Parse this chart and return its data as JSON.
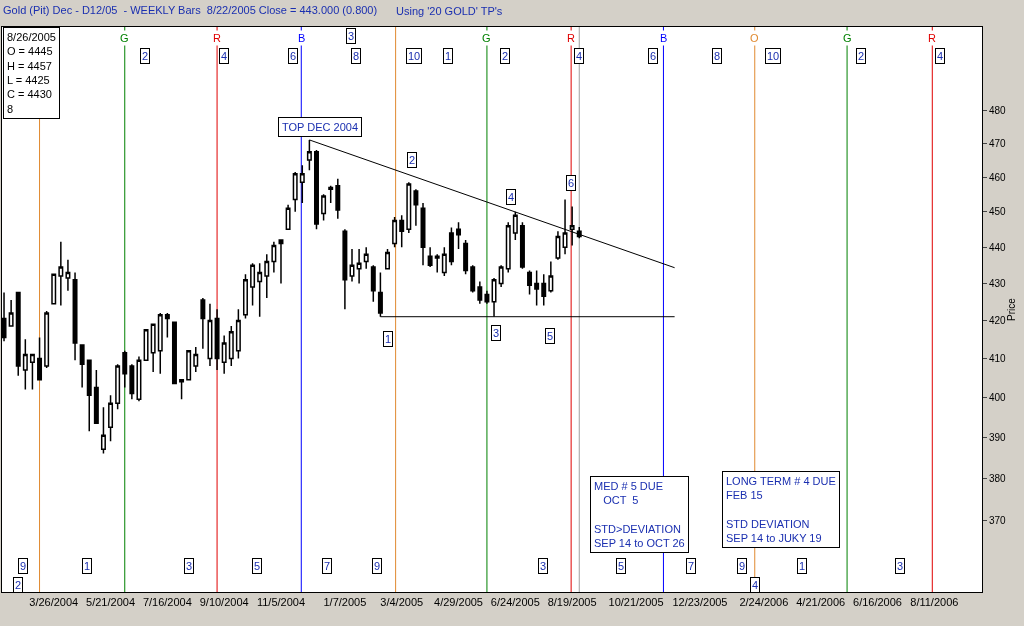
{
  "chart_data": {
    "type": "candlestick",
    "title": "Gold (Pit) Dec - D12/05  - WEEKLY Bars  8/22/2005 Close = 443.000 (0.800)",
    "subtitle": "Using '20 GOLD' TP's",
    "ylabel": "Price",
    "color": "#000000",
    "x": [
      "2004-02-06",
      "2004-02-13",
      "2004-02-20",
      "2004-02-27",
      "2004-03-05",
      "2004-03-12",
      "2004-03-19",
      "2004-03-26",
      "2004-04-02",
      "2004-04-09",
      "2004-04-16",
      "2004-04-23",
      "2004-04-30",
      "2004-05-07",
      "2004-05-14",
      "2004-05-21",
      "2004-05-28",
      "2004-06-04",
      "2004-06-11",
      "2004-06-18",
      "2004-06-25",
      "2004-07-02",
      "2004-07-09",
      "2004-07-16",
      "2004-07-23",
      "2004-07-30",
      "2004-08-06",
      "2004-08-13",
      "2004-08-20",
      "2004-08-27",
      "2004-09-03",
      "2004-09-10",
      "2004-09-17",
      "2004-09-24",
      "2004-10-01",
      "2004-10-08",
      "2004-10-15",
      "2004-10-22",
      "2004-10-29",
      "2004-11-05",
      "2004-11-12",
      "2004-11-19",
      "2004-11-26",
      "2004-12-03",
      "2004-12-10",
      "2004-12-17",
      "2004-12-24",
      "2004-12-31",
      "2005-01-07",
      "2005-01-14",
      "2005-01-21",
      "2005-01-28",
      "2005-02-04",
      "2005-02-11",
      "2005-02-18",
      "2005-02-25",
      "2005-03-04",
      "2005-03-11",
      "2005-03-18",
      "2005-03-25",
      "2005-04-01",
      "2005-04-08",
      "2005-04-15",
      "2005-04-22",
      "2005-04-29",
      "2005-05-06",
      "2005-05-13",
      "2005-05-20",
      "2005-05-27",
      "2005-06-03",
      "2005-06-10",
      "2005-06-17",
      "2005-06-24",
      "2005-07-01",
      "2005-07-08",
      "2005-07-15",
      "2005-07-22",
      "2005-07-29",
      "2005-08-05",
      "2005-08-12",
      "2005-08-19",
      "2005-08-26"
    ],
    "ohlc": [
      [
        420.5,
        427.5,
        414.5,
        415.5
      ],
      [
        418.5,
        425.5,
        418.5,
        422
      ],
      [
        427.5,
        427.5,
        405.5,
        408
      ],
      [
        407,
        415,
        402,
        411
      ],
      [
        409,
        411,
        402,
        411
      ],
      [
        410,
        415.5,
        404.5,
        404.5
      ],
      [
        408,
        422.5,
        407.5,
        422
      ],
      [
        424.5,
        432.5,
        424.5,
        432.5
      ],
      [
        432,
        441.5,
        424,
        434.5
      ],
      [
        431.5,
        436.5,
        428,
        433
      ],
      [
        431,
        433,
        409.5,
        414
      ],
      [
        413.5,
        413.5,
        402.5,
        408.5
      ],
      [
        409.5,
        409.5,
        391.5,
        400.5
      ],
      [
        402.5,
        407,
        393.5,
        393.5
      ],
      [
        387,
        397.5,
        386,
        390.5
      ],
      [
        392.5,
        400.5,
        389,
        398.5
      ],
      [
        398.5,
        408.5,
        397,
        408
      ],
      [
        411.5,
        412,
        402.5,
        406
      ],
      [
        408,
        408.5,
        399.5,
        401
      ],
      [
        399.5,
        410.5,
        399,
        409.5
      ],
      [
        409.5,
        417.5,
        409.5,
        417.5
      ],
      [
        411.5,
        419,
        406.5,
        419
      ],
      [
        412,
        422,
        406,
        421.5
      ],
      [
        421.5,
        422,
        415.5,
        420.5
      ],
      [
        419.5,
        419.5,
        403.5,
        403.5
      ],
      [
        404,
        404.5,
        399.5,
        404.5
      ],
      [
        404.5,
        412,
        404.5,
        412
      ],
      [
        408,
        413,
        406.5,
        411
      ],
      [
        425.5,
        426,
        412.5,
        420.5
      ],
      [
        410,
        424.5,
        408,
        420
      ],
      [
        420.5,
        423,
        407,
        410
      ],
      [
        409,
        416,
        406,
        414
      ],
      [
        410,
        418.5,
        408,
        417
      ],
      [
        412,
        423,
        410,
        420
      ],
      [
        421.5,
        432.5,
        420.5,
        431
      ],
      [
        429,
        435.5,
        424,
        435
      ],
      [
        430.5,
        435.5,
        421,
        433
      ],
      [
        432,
        438,
        426,
        436
      ],
      [
        436,
        441.5,
        433,
        440.5
      ],
      [
        442,
        442,
        430,
        441
      ],
      [
        445,
        452,
        445,
        451
      ],
      [
        453.5,
        461.5,
        450,
        461
      ],
      [
        458.5,
        463.5,
        452.5,
        461
      ],
      [
        465,
        471,
        462,
        467.5
      ],
      [
        467.5,
        468,
        445,
        446.5
      ],
      [
        449.5,
        455,
        447.5,
        454.5
      ],
      [
        456.5,
        457.5,
        452.5,
        457
      ],
      [
        457.5,
        459.5,
        448,
        450.5
      ],
      [
        444.5,
        445,
        423,
        431
      ],
      [
        432,
        439.5,
        430.5,
        435
      ],
      [
        434,
        439.5,
        430,
        435.5
      ],
      [
        436,
        440,
        434,
        438
      ],
      [
        434.5,
        435,
        425,
        428
      ],
      [
        427.5,
        433,
        421,
        422
      ],
      [
        434,
        439.5,
        434,
        438.5
      ],
      [
        441,
        448.5,
        440,
        447.5
      ],
      [
        447.5,
        449,
        440,
        444.5
      ],
      [
        445,
        458.5,
        444,
        458
      ],
      [
        456,
        456.5,
        446,
        452
      ],
      [
        451,
        452.5,
        435,
        440
      ],
      [
        437.5,
        440,
        434.5,
        435
      ],
      [
        437,
        438,
        433,
        437.5
      ],
      [
        433,
        440,
        432,
        438
      ],
      [
        444,
        445.5,
        435,
        436
      ],
      [
        445,
        447,
        439.5,
        443.5
      ],
      [
        441,
        442,
        432.5,
        433.5
      ],
      [
        434.5,
        435,
        427.5,
        428
      ],
      [
        429,
        430.5,
        424.5,
        425.5
      ],
      [
        427,
        428,
        424.5,
        425
      ],
      [
        425,
        431.5,
        421,
        431
      ],
      [
        430,
        435,
        429,
        434.5
      ],
      [
        434,
        447,
        433,
        446
      ],
      [
        444,
        450,
        442,
        449
      ],
      [
        446,
        447,
        434,
        434.5
      ],
      [
        433,
        433.5,
        427,
        429.5
      ],
      [
        430,
        433.5,
        424,
        428.5
      ],
      [
        430,
        432.5,
        424,
        426.5
      ],
      [
        428,
        436,
        427.5,
        432
      ],
      [
        437,
        444.5,
        436.5,
        443
      ],
      [
        440,
        453.5,
        438,
        444
      ],
      [
        445,
        451.5,
        440.5,
        446
      ],
      [
        444.5,
        445.7,
        442.5,
        443.0
      ]
    ],
    "series": [
      {
        "type": "line",
        "color": "#000000",
        "x": [
          "2004-12-03",
          "2005-11-28"
        ],
        "values": [
          471,
          434.3
        ]
      },
      {
        "type": "line",
        "color": "#000000",
        "x": [
          "2005-02-11",
          "2005-11-28"
        ],
        "values": [
          421,
          421
        ]
      }
    ],
    "log": "y",
    "xlim": [
      "2004-02-04",
      "2006-09-27"
    ],
    "xticks": [
      {
        "value": "2004-03-26",
        "label": "3/26/2004"
      },
      {
        "value": "2004-05-21",
        "label": "5/21/2004"
      },
      {
        "value": "2004-07-16",
        "label": "7/16/2004"
      },
      {
        "value": "2004-09-10",
        "label": "9/10/2004"
      },
      {
        "value": "2004-11-05",
        "label": "11/5/2004"
      },
      {
        "value": "2005-01-07",
        "label": "1/7/2005"
      },
      {
        "value": "2005-03-04",
        "label": "3/4/2005"
      },
      {
        "value": "2005-04-29",
        "label": "4/29/2005"
      },
      {
        "value": "2005-06-24",
        "label": "6/24/2005"
      },
      {
        "value": "2005-08-19",
        "label": "8/19/2005"
      },
      {
        "value": "2005-10-21",
        "label": "10/21/2005"
      },
      {
        "value": "2005-12-23",
        "label": "12/23/2005"
      },
      {
        "value": "2006-02-24",
        "label": "2/24/2006"
      },
      {
        "value": "2006-04-21",
        "label": "4/21/2006"
      },
      {
        "value": "2006-06-16",
        "label": "6/16/2006"
      },
      {
        "value": "2006-08-11",
        "label": "8/11/2006"
      }
    ],
    "ylim": [
      353.5,
      506
    ],
    "yticks": [
      370,
      380,
      390,
      400,
      410,
      420,
      430,
      440,
      450,
      460,
      470,
      480
    ],
    "grid": false,
    "ref_lines": [
      {
        "axis": "x",
        "value": "2004-03-12",
        "label": null,
        "color": "#e08a30"
      },
      {
        "axis": "x",
        "value": "2004-06-04",
        "label": "G",
        "color": "#008000"
      },
      {
        "axis": "x",
        "value": "2004-09-03",
        "label": "R",
        "color": "#e00000"
      },
      {
        "axis": "x",
        "value": "2004-11-25",
        "label": "B",
        "color": "#0000ff"
      },
      {
        "axis": "x",
        "value": "2005-02-26",
        "label": null,
        "color": "#e08a30"
      },
      {
        "axis": "x",
        "value": "2005-05-27",
        "label": "G",
        "color": "#008000"
      },
      {
        "axis": "x",
        "value": "2005-08-18",
        "label": "R",
        "color": "#e00000"
      },
      {
        "axis": "x",
        "value": "2005-08-26",
        "label": null,
        "color": "#a0a0a0"
      },
      {
        "axis": "x",
        "value": "2005-11-17",
        "label": "B",
        "color": "#0000ff"
      },
      {
        "axis": "x",
        "value": "2006-02-15",
        "label": "O",
        "color": "#e08a30"
      },
      {
        "axis": "x",
        "value": "2006-05-17",
        "label": "G",
        "color": "#008000"
      },
      {
        "axis": "x",
        "value": "2006-08-09",
        "label": "R",
        "color": "#e00000"
      }
    ],
    "annotations": [
      "8/26/2005\nO = 4445\nH = 4457\nL = 4425\nC = 4430\n8",
      "MED # 5 DUE\n   OCT  5\n\nSTD>DEVIATION\nSEP 14 to OCT 26",
      "LONG TERM # 4 DUE\nFEB 15\n\nSTD DEVIATION\nSEP 14 to JUKY 19",
      "TOP DEC 2004",
      {
        "text": "1",
        "x": "2005-02-18",
        "y": 415.2
      },
      {
        "text": "2",
        "x": "2005-03-14",
        "y": 465.1
      },
      {
        "text": "3",
        "x": "2005-06-05",
        "y": 416.8
      },
      {
        "text": "4",
        "x": "2005-06-20",
        "y": 454.3
      },
      {
        "text": "5",
        "x": "2005-07-28",
        "y": 416
      },
      {
        "text": "6",
        "x": "2005-08-18",
        "y": 458.4
      },
      {
        "text": "3",
        "x": "2005-01-13",
        "y": 503
      },
      {
        "text": "2",
        "x": "2004-02-20",
        "y": 355
      },
      {
        "text": "4",
        "x": "2006-02-15",
        "y": 355
      },
      {
        "text": "2",
        "x": "2004-06-24",
        "y": 496.7
      },
      {
        "text": "4",
        "x": "2004-09-10",
        "y": 496.7
      },
      {
        "text": "6",
        "x": "2004-11-17",
        "y": 496.7
      },
      {
        "text": "8",
        "x": "2005-01-18",
        "y": 496.7
      },
      {
        "text": "10",
        "x": "2005-03-16",
        "y": 496.7
      },
      {
        "text": "1",
        "x": "2005-04-19",
        "y": 496.7
      },
      {
        "text": "2",
        "x": "2005-06-14",
        "y": 496.7
      },
      {
        "text": "4",
        "x": "2005-08-26",
        "y": 496.7
      },
      {
        "text": "6",
        "x": "2005-11-07",
        "y": 496.7
      },
      {
        "text": "8",
        "x": "2006-01-09",
        "y": 496.7
      },
      {
        "text": "10",
        "x": "2006-03-05",
        "y": 496.7
      },
      {
        "text": "2",
        "x": "2006-05-31",
        "y": 496.7
      },
      {
        "text": "4",
        "x": "2006-08-17",
        "y": 496.7
      },
      {
        "text": "9",
        "x": "2004-02-25",
        "y": 359.4
      },
      {
        "text": "1",
        "x": "2004-04-28",
        "y": 359.4
      },
      {
        "text": "3",
        "x": "2004-08-06",
        "y": 359.4
      },
      {
        "text": "5",
        "x": "2004-10-12",
        "y": 359.4
      },
      {
        "text": "7",
        "x": "2004-12-20",
        "y": 359.4
      },
      {
        "text": "9",
        "x": "2005-02-08",
        "y": 359.4
      },
      {
        "text": "3",
        "x": "2005-07-21",
        "y": 359.4
      },
      {
        "text": "5",
        "x": "2005-10-06",
        "y": 359.4
      },
      {
        "text": "7",
        "x": "2005-12-14",
        "y": 359.4
      },
      {
        "text": "9",
        "x": "2006-02-02",
        "y": 359.4
      },
      {
        "text": "1",
        "x": "2006-04-03",
        "y": 359.4
      },
      {
        "text": "3",
        "x": "2006-07-08",
        "y": 359.4
      }
    ]
  }
}
